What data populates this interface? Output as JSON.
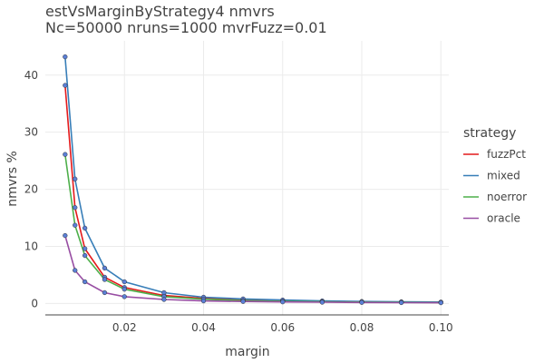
{
  "chart_data": {
    "type": "line",
    "title": "estVsMarginByStrategy4 nmvrs",
    "subtitle": "Nc=50000 nruns=1000 mvrFuzz=0.01",
    "xlabel": "margin",
    "ylabel": "nmvrs %",
    "xlim": [
      0.0,
      0.102
    ],
    "ylim": [
      -2,
      46
    ],
    "xticks": [
      "0.02",
      "0.04",
      "0.06",
      "0.08",
      "0.10"
    ],
    "yticks": [
      "0",
      "10",
      "20",
      "30",
      "40"
    ],
    "grid": true,
    "legend_title": "strategy",
    "legend_position": "right",
    "marker_color": "#5b7fd6",
    "x": [
      0.005,
      0.0075,
      0.01,
      0.015,
      0.02,
      0.03,
      0.04,
      0.05,
      0.06,
      0.07,
      0.08,
      0.09,
      0.1
    ],
    "series": [
      {
        "name": "fuzzPct",
        "color": "#e41a1c",
        "values": [
          38.2,
          16.8,
          9.6,
          4.6,
          2.8,
          1.4,
          0.9,
          0.6,
          0.45,
          0.35,
          0.28,
          0.22,
          0.18
        ]
      },
      {
        "name": "mixed",
        "color": "#377eb8",
        "values": [
          43.2,
          21.8,
          13.2,
          6.2,
          3.8,
          1.9,
          1.1,
          0.8,
          0.6,
          0.45,
          0.35,
          0.3,
          0.25
        ]
      },
      {
        "name": "noerror",
        "color": "#4daf4a",
        "values": [
          26.1,
          13.7,
          8.4,
          4.2,
          2.5,
          1.2,
          0.75,
          0.5,
          0.38,
          0.3,
          0.24,
          0.2,
          0.16
        ]
      },
      {
        "name": "oracle",
        "color": "#984ea3",
        "values": [
          11.9,
          5.8,
          3.8,
          1.9,
          1.2,
          0.7,
          0.45,
          0.35,
          0.28,
          0.22,
          0.18,
          0.15,
          0.13
        ]
      }
    ]
  }
}
